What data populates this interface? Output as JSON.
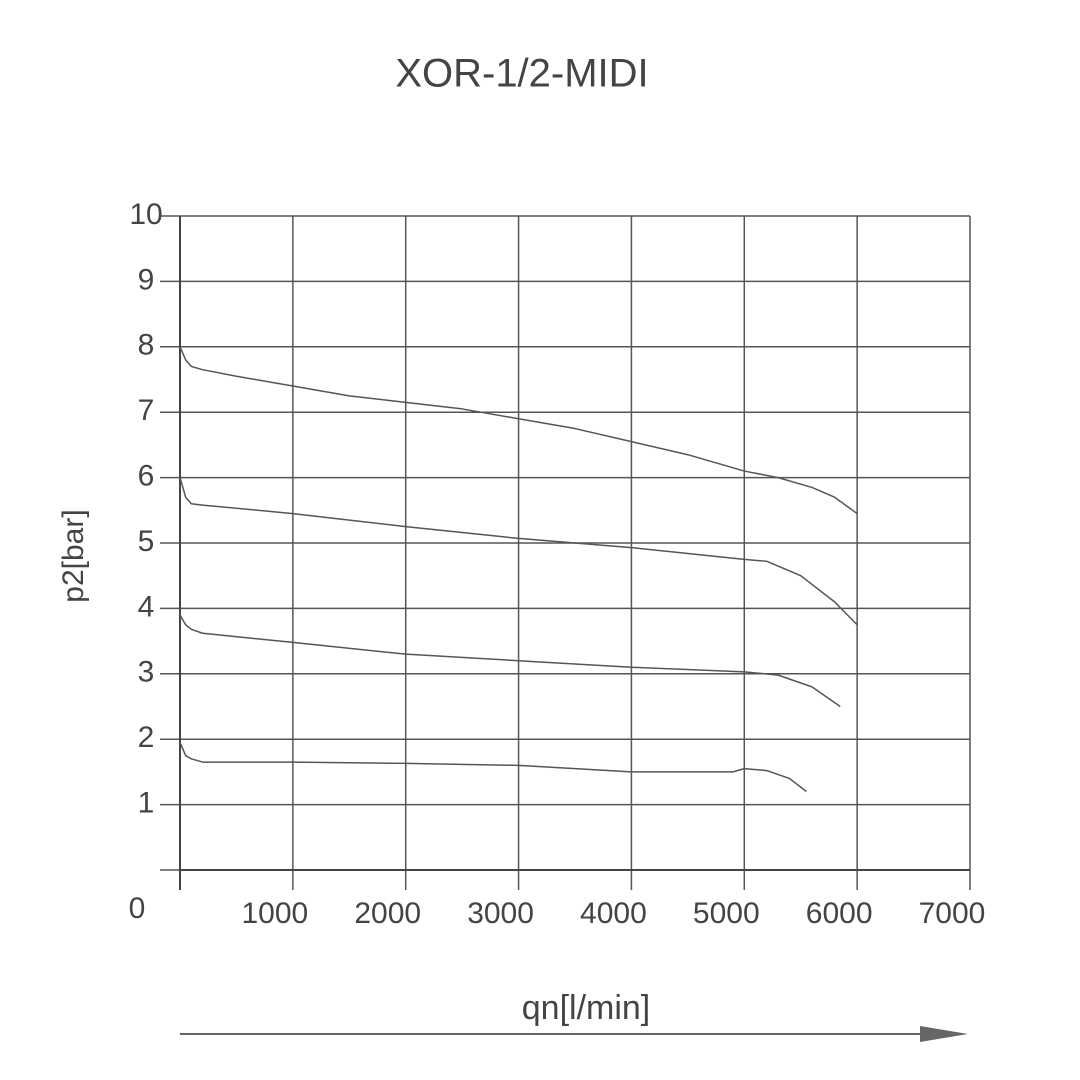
{
  "chart_data": {
    "type": "line",
    "title": "XOR-1/2-MIDI",
    "x_label": "qn[l/min]",
    "y_label": "p2[bar]",
    "xlim": [
      0,
      7000
    ],
    "ylim": [
      0,
      10
    ],
    "xticks": [
      1000,
      2000,
      3000,
      4000,
      5000,
      6000,
      7000
    ],
    "yticks": [
      0,
      1,
      2,
      3,
      4,
      5,
      6,
      7,
      8,
      9,
      10
    ],
    "grid": true,
    "series": [
      {
        "color": "#555555",
        "x": [
          0,
          50,
          100,
          200,
          500,
          1000,
          1500,
          2000,
          2500,
          3000,
          3500,
          4000,
          4500,
          5000,
          5300,
          5600,
          5800,
          6000
        ],
        "values": [
          8.0,
          7.8,
          7.7,
          7.65,
          7.55,
          7.4,
          7.25,
          7.15,
          7.05,
          6.9,
          6.75,
          6.55,
          6.35,
          6.1,
          6.0,
          5.85,
          5.7,
          5.45
        ]
      },
      {
        "color": "#555555",
        "x": [
          0,
          50,
          100,
          200,
          1000,
          2000,
          3000,
          4000,
          5000,
          5200,
          5500,
          5800,
          6000
        ],
        "values": [
          6.0,
          5.7,
          5.6,
          5.58,
          5.45,
          5.25,
          5.07,
          4.93,
          4.75,
          4.72,
          4.5,
          4.1,
          3.75
        ]
      },
      {
        "color": "#555555",
        "x": [
          0,
          50,
          100,
          200,
          1000,
          2000,
          3000,
          4000,
          5000,
          5300,
          5600,
          5850
        ],
        "values": [
          3.9,
          3.75,
          3.68,
          3.62,
          3.48,
          3.3,
          3.2,
          3.1,
          3.03,
          2.98,
          2.8,
          2.5
        ]
      },
      {
        "color": "#555555",
        "x": [
          0,
          50,
          100,
          200,
          1000,
          2000,
          3000,
          4000,
          4900,
          5000,
          5200,
          5400,
          5550
        ],
        "values": [
          1.95,
          1.75,
          1.7,
          1.65,
          1.65,
          1.63,
          1.6,
          1.5,
          1.5,
          1.55,
          1.52,
          1.4,
          1.2
        ]
      }
    ]
  }
}
